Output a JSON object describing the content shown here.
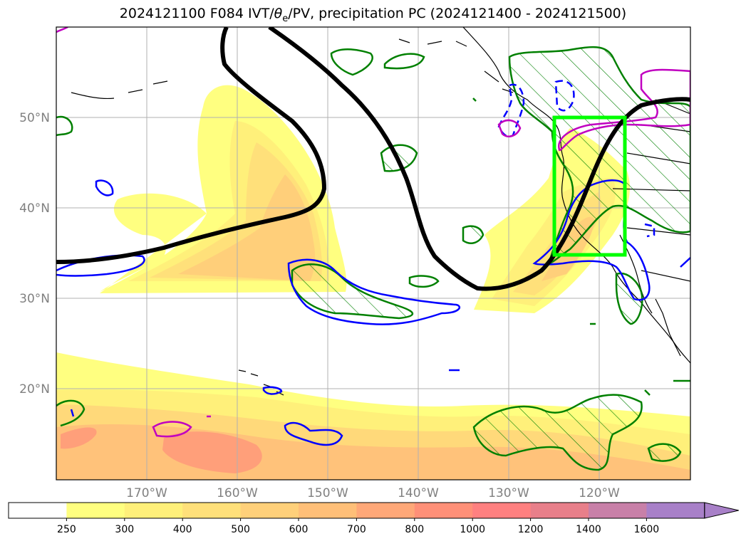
{
  "title": {
    "run": "2024121100",
    "forecast": "F084",
    "ivt_prefix": "IVT/",
    "theta_symbol": "θ",
    "theta_sub": "e",
    "rest": "/PV, precipitation PC (2024121400 - 2024121500)"
  },
  "axes": {
    "lat_labels": [
      "50°N",
      "40°N",
      "30°N",
      "20°N"
    ],
    "lon_labels": [
      "170°W",
      "160°W",
      "150°W",
      "140°W",
      "130°W",
      "120°W"
    ]
  },
  "colorbar": {
    "levels": [
      "250",
      "300",
      "400",
      "500",
      "600",
      "700",
      "800",
      "1000",
      "1200",
      "1400",
      "1600"
    ],
    "colors": [
      "#ffffff",
      "#ffff80",
      "#fff07a",
      "#ffe07a",
      "#ffd07a",
      "#ffbf78",
      "#ffa878",
      "#ff9078",
      "#ff8080",
      "#e87f8a",
      "#c880a8",
      "#a880c8"
    ]
  },
  "colors": {
    "ivt_fill_light": "#ffff80",
    "ivt_fill_mid": "#ffe57a",
    "ivt_fill_deep": "#ffc878",
    "ivt_fill_max": "#ffa07a",
    "pv_contour": "#000000",
    "theta_contour": "#0000ff",
    "pv_secondary": "#c000c0",
    "precip_hatch": "#008000",
    "highlight_box": "#00ff00",
    "coastline": "#000000",
    "grid": "#b0b0b0"
  }
}
